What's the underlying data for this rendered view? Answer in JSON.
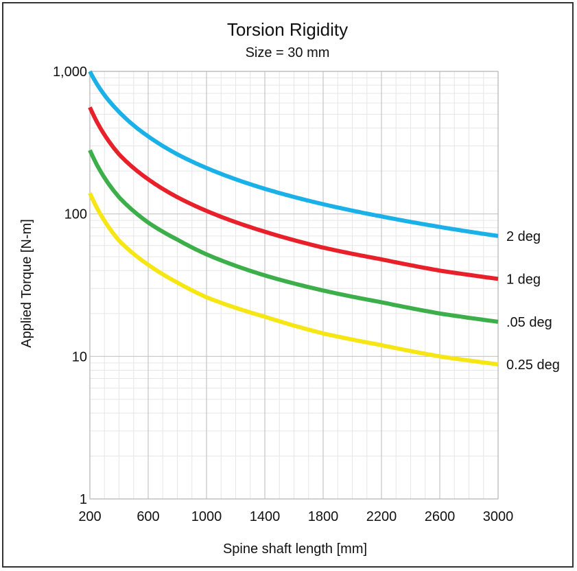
{
  "chart_data": {
    "type": "line",
    "title": "Torsion Rigidity",
    "subtitle": "Size = 30 mm",
    "xlabel": "Spine shaft length [mm]",
    "ylabel": "Applied Torque [N-m]",
    "xlim": [
      200,
      3000
    ],
    "ylim": [
      1,
      1000
    ],
    "yscale": "log",
    "grid": true,
    "xticks": [
      "200",
      "600",
      "1000",
      "1400",
      "1800",
      "2200",
      "2600",
      "3000"
    ],
    "yticks": [
      "1",
      "10",
      "100",
      "1,000"
    ],
    "legend": "right-end labels",
    "series": [
      {
        "name": "2 deg",
        "color": "#1ab0e8",
        "x": [
          200,
          400,
          600,
          800,
          1000,
          1400,
          1800,
          2200,
          2600,
          3000
        ],
        "y": [
          1000,
          520,
          350,
          262,
          210,
          150,
          117,
          96,
          81,
          70
        ]
      },
      {
        "name": "1 deg",
        "color": "#e8202a",
        "x": [
          200,
          400,
          600,
          800,
          1000,
          1400,
          1800,
          2200,
          2600,
          3000
        ],
        "y": [
          560,
          262,
          175,
          131,
          105,
          75,
          58,
          48,
          40,
          35
        ]
      },
      {
        "name": ".05 deg",
        "color": "#3cae4a",
        "x": [
          200,
          400,
          600,
          800,
          1000,
          1400,
          1800,
          2200,
          2600,
          3000
        ],
        "y": [
          280,
          131,
          87,
          66,
          52,
          37,
          29,
          24,
          20,
          17.5
        ]
      },
      {
        "name": "0.25 deg",
        "color": "#f5e614",
        "x": [
          200,
          400,
          600,
          800,
          1000,
          1400,
          1800,
          2200,
          2600,
          3000
        ],
        "y": [
          140,
          65,
          44,
          33,
          26,
          19,
          14.5,
          12,
          10,
          8.8
        ]
      }
    ]
  }
}
